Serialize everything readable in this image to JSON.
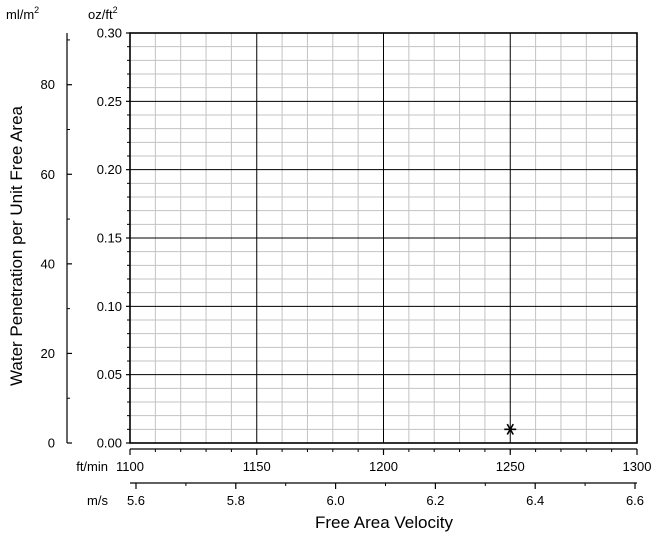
{
  "chart_data": {
    "type": "scatter",
    "title": "",
    "ylabel": "Water Penetration per Unit Free Area",
    "xlabel": "Free Area Velocity",
    "y_unit_left": "ml/m",
    "y_unit_left_sup": "2",
    "y_unit_right": "oz/ft",
    "y_unit_right_sup": "2",
    "x_unit_top": "ft/min",
    "x_unit_bottom": "m/s",
    "x_ftmin_range": [
      1100,
      1300
    ],
    "x_ftmin_ticks": [
      "1100",
      "1150",
      "1200",
      "1250",
      "1300"
    ],
    "x_ms_ticks": [
      "5.6",
      "5.8",
      "6.0",
      "6.2",
      "6.4",
      "6.6"
    ],
    "y_ozft2_range": [
      0,
      0.3
    ],
    "y_ozft2_ticks": [
      "0.00",
      "0.05",
      "0.10",
      "0.15",
      "0.20",
      "0.25",
      "0.30"
    ],
    "y_mlm2_ticks": [
      "0",
      "20",
      "40",
      "60",
      "80"
    ],
    "grid": true,
    "series": [
      {
        "marker": "asterisk",
        "points": [
          {
            "x": 1250,
            "y": 0.01
          }
        ]
      }
    ]
  }
}
